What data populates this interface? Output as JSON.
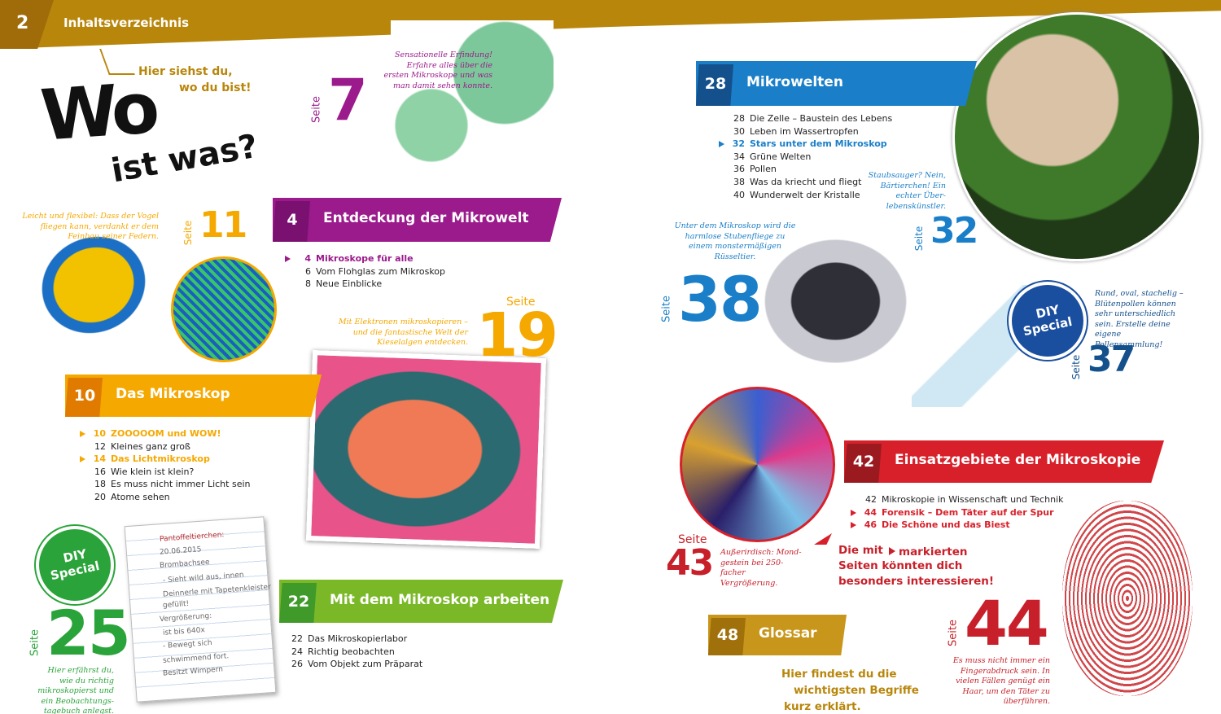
{
  "header": {
    "page_number": "2",
    "title": "Inhaltsverzeichnis"
  },
  "intro": {
    "lines": [
      "Hier siehst du,",
      "wo du bist!"
    ]
  },
  "main_title": {
    "line1": "Wo",
    "line2": "ist was?"
  },
  "chapters": [
    {
      "number": 4,
      "title": "Entdeckung der Mikrowelt",
      "items": [
        {
          "page": 4,
          "title": "Mikroskope für alle",
          "marked": true
        },
        {
          "page": 6,
          "title": "Vom Flohglas zum Mikroskop",
          "marked": false
        },
        {
          "page": 8,
          "title": "Neue Einblicke",
          "marked": false
        }
      ]
    },
    {
      "number": 10,
      "title": "Das Mikroskop",
      "items": [
        {
          "page": 10,
          "title": "ZOOOOOM und WOW!",
          "marked": true
        },
        {
          "page": 12,
          "title": "Kleines ganz groß",
          "marked": false
        },
        {
          "page": 14,
          "title": "Das Lichtmikroskop",
          "marked": true
        },
        {
          "page": 16,
          "title": "Wie klein ist klein?",
          "marked": false
        },
        {
          "page": 18,
          "title": "Es muss nicht immer Licht sein",
          "marked": false
        },
        {
          "page": 20,
          "title": "Atome sehen",
          "marked": false
        }
      ]
    },
    {
      "number": 22,
      "title": "Mit dem Mikroskop arbeiten",
      "items": [
        {
          "page": 22,
          "title": "Das Mikroskopierlabor",
          "marked": false
        },
        {
          "page": 24,
          "title": "Richtig beobachten",
          "marked": false
        },
        {
          "page": 26,
          "title": "Vom Objekt zum Präparat",
          "marked": false
        }
      ]
    },
    {
      "number": 28,
      "title": "Mikrowelten",
      "items": [
        {
          "page": 28,
          "title": "Die Zelle – Baustein des Lebens",
          "marked": false
        },
        {
          "page": 30,
          "title": "Leben im Wassertropfen",
          "marked": false
        },
        {
          "page": 32,
          "title": "Stars unter dem Mikroskop",
          "marked": true
        },
        {
          "page": 34,
          "title": "Grüne Welten",
          "marked": false
        },
        {
          "page": 36,
          "title": "Pollen",
          "marked": false
        },
        {
          "page": 38,
          "title": "Was da kriecht und fliegt",
          "marked": false
        },
        {
          "page": 40,
          "title": "Wunderwelt der Kristalle",
          "marked": false
        }
      ]
    },
    {
      "number": 42,
      "title": "Einsatzgebiete der Mikroskopie",
      "items": [
        {
          "page": 42,
          "title": "Mikroskopie in Wissenschaft und Technik",
          "marked": false
        },
        {
          "page": 44,
          "title": "Forensik – Dem Täter auf der Spur",
          "marked": true
        },
        {
          "page": 46,
          "title": "Die Schöne und das Biest",
          "marked": true
        }
      ]
    },
    {
      "number": 48,
      "title": "Glossar"
    }
  ],
  "page_refs": [
    {
      "label": "Seite",
      "page": 7,
      "caption": "Sensationelle Erfindung! Erfahre alles über die ersten Mikroskope und was man damit sehen konnte."
    },
    {
      "label": "Seite",
      "page": 11,
      "caption": "Leicht und flexibel: Dass der Vogel fliegen kann, verdankt er dem Feinbau seiner Federn."
    },
    {
      "label": "Seite",
      "page": 19,
      "caption": "Mit Elektronen mikroskopieren – und die fantastische Welt der Kieselalgen entdecken."
    },
    {
      "label": "Seite",
      "page": 25,
      "caption": "Hier erfährst du, wie du richtig mikroskopierst und ein Beobachtungs­tagebuch anlegst."
    },
    {
      "label": "Seite",
      "page": 32,
      "caption": "Staubsauger? Nein, Bärtierchen! Ein echter Über­lebenskünstler."
    },
    {
      "label": "Seite",
      "page": 38,
      "caption": "Unter dem Mikroskop wird die harmlose Stubenfliege zu einem monstermäßigen Rüsseltier."
    },
    {
      "label": "Seite",
      "page": 37,
      "caption": "Rund, oval, stachelig – Blütenpollen können sehr unterschiedlich sein. Erstelle deine eigene Pollensammlung!"
    },
    {
      "label": "Seite",
      "page": 43,
      "caption": "Außerirdisch: Mond­gestein bei 250-facher Vergrößerung."
    },
    {
      "label": "Seite",
      "page": 44,
      "caption": "Es muss nicht immer ein Fingerabdruck sein. In vielen Fällen genügt ein Haar, um den Täter zu überführen."
    }
  ],
  "diy_badges": [
    {
      "line1": "DIY",
      "line2": "Special"
    },
    {
      "line1": "DIY",
      "line2": "Special"
    }
  ],
  "notebook": {
    "lines": [
      "Pantoffeltierchen:",
      "20.06.2015",
      "Brombachsee",
      "- Sieht wild aus, innen",
      "Deinnerle mit Tapetenkleister",
      "gefüllt!",
      "Vergrößerung:",
      "ist bis 640x",
      "- Bewegt sich",
      "schwimmend fort.",
      "Besitzt Wimpern"
    ]
  },
  "glossary_note": [
    "Hier findest du die",
    "wichtigsten Begriffe",
    "kurz erklärt."
  ],
  "legend_note": {
    "before": "Die mit",
    "after_line1": "markierten",
    "after_line2": "Seiten könnten dich",
    "after_line3": "besonders interessieren!"
  }
}
